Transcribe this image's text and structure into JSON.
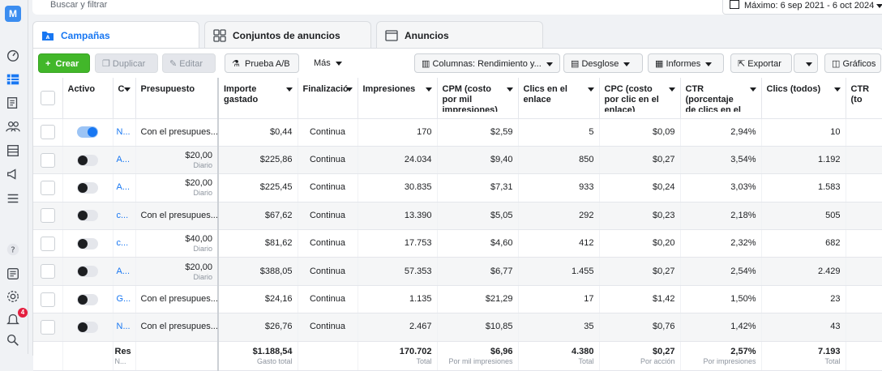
{
  "search": {
    "placeholder": "Buscar y filtrar"
  },
  "date_range": {
    "label": "Máximo: 6 sep 2021 - 6 oct 2024"
  },
  "tabs": [
    {
      "label": "Campañas",
      "icon": "folder-icon",
      "active": true
    },
    {
      "label": "Conjuntos de anuncios",
      "icon": "grid-icon",
      "active": false
    },
    {
      "label": "Anuncios",
      "icon": "ad-icon",
      "active": false
    }
  ],
  "toolbar": {
    "create": "Crear",
    "duplicate": "Duplicar",
    "edit": "Editar",
    "ab_test": "Prueba A/B",
    "more": "Más",
    "columns": "Columnas: Rendimiento y...",
    "breakdown": "Desglose",
    "reports": "Informes",
    "export": "Exportar",
    "charts": "Gráficos"
  },
  "table": {
    "headers": {
      "active": "Activo",
      "name": "C",
      "budget": "Presupuesto",
      "spent": "Importe gastado",
      "ends": "Finalizació",
      "impressions": "Impresiones",
      "cpm": "CPM (costo por mil impresiones)",
      "link_clicks": "Clics en el enlace",
      "cpc": "CPC (costo por clic en el enlace)",
      "ctr": "CTR (porcentaje de clics en el",
      "clicks_all": "Clics (todos)",
      "ctr_all": "CTR (to"
    },
    "rows": [
      {
        "on": true,
        "name": "N...",
        "budget": "Con el presupues...",
        "budget_sub": "",
        "spent": "$0,44",
        "ends": "Continua",
        "impressions": "170",
        "cpm": "$2,59",
        "link_clicks": "5",
        "cpc": "$0,09",
        "ctr": "2,94%",
        "clicks_all": "10"
      },
      {
        "on": false,
        "name": "A...",
        "budget": "$20,00",
        "budget_sub": "Diario",
        "spent": "$225,86",
        "ends": "Continua",
        "impressions": "24.034",
        "cpm": "$9,40",
        "link_clicks": "850",
        "cpc": "$0,27",
        "ctr": "3,54%",
        "clicks_all": "1.192"
      },
      {
        "on": false,
        "name": "A...",
        "budget": "$20,00",
        "budget_sub": "Diario",
        "spent": "$225,45",
        "ends": "Continua",
        "impressions": "30.835",
        "cpm": "$7,31",
        "link_clicks": "933",
        "cpc": "$0,24",
        "ctr": "3,03%",
        "clicks_all": "1.583"
      },
      {
        "on": false,
        "name": "c...",
        "budget": "Con el presupues...",
        "budget_sub": "",
        "spent": "$67,62",
        "ends": "Continua",
        "impressions": "13.390",
        "cpm": "$5,05",
        "link_clicks": "292",
        "cpc": "$0,23",
        "ctr": "2,18%",
        "clicks_all": "505"
      },
      {
        "on": false,
        "name": "c...",
        "budget": "$40,00",
        "budget_sub": "Diario",
        "spent": "$81,62",
        "ends": "Continua",
        "impressions": "17.753",
        "cpm": "$4,60",
        "link_clicks": "412",
        "cpc": "$0,20",
        "ctr": "2,32%",
        "clicks_all": "682"
      },
      {
        "on": false,
        "name": "A...",
        "budget": "$20,00",
        "budget_sub": "Diario",
        "spent": "$388,05",
        "ends": "Continua",
        "impressions": "57.353",
        "cpm": "$6,77",
        "link_clicks": "1.455",
        "cpc": "$0,27",
        "ctr": "2,54%",
        "clicks_all": "2.429"
      },
      {
        "on": false,
        "name": "G...",
        "budget": "Con el presupues...",
        "budget_sub": "",
        "spent": "$24,16",
        "ends": "Continua",
        "impressions": "1.135",
        "cpm": "$21,29",
        "link_clicks": "17",
        "cpc": "$1,42",
        "ctr": "1,50%",
        "clicks_all": "23"
      },
      {
        "on": false,
        "name": "N...",
        "budget": "Con el presupues...",
        "budget_sub": "",
        "spent": "$26,76",
        "ends": "Continua",
        "impressions": "2.467",
        "cpm": "$10,85",
        "link_clicks": "35",
        "cpc": "$0,76",
        "ctr": "1,42%",
        "clicks_all": "43"
      }
    ],
    "totals": {
      "label": "Res",
      "label_sub": "N...",
      "spent": "$1.188,54",
      "spent_sub": "Gasto total",
      "impressions": "170.702",
      "impressions_sub": "Total",
      "cpm": "$6,96",
      "cpm_sub": "Por mil impresiones",
      "link_clicks": "4.380",
      "link_clicks_sub": "Total",
      "cpc": "$0,27",
      "cpc_sub": "Por acción",
      "ctr": "2,57%",
      "ctr_sub": "Por impresiones",
      "clicks_all": "7.193",
      "clicks_all_sub": "Total"
    }
  },
  "sidebar": {
    "notifications_badge": "4",
    "logo": "M"
  }
}
